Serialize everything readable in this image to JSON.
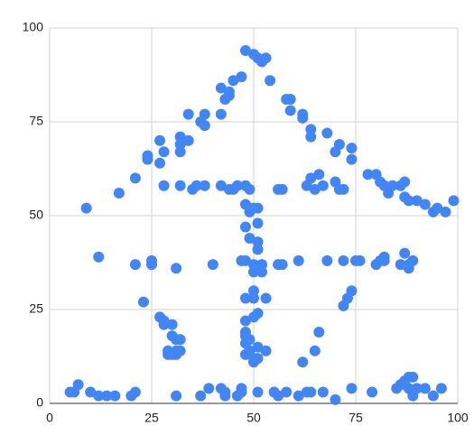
{
  "chart_data": {
    "type": "scatter",
    "color": "#4285f4",
    "xlim": [
      0,
      100
    ],
    "ylim": [
      0,
      100
    ],
    "xticks": [
      0,
      25,
      50,
      75,
      100
    ],
    "yticks": [
      0,
      25,
      50,
      75,
      100
    ],
    "grid": true,
    "x": [
      9,
      17,
      21,
      24,
      24,
      27,
      27,
      28,
      32,
      32,
      32,
      34,
      34,
      37,
      38,
      38,
      42,
      42,
      43,
      44,
      44,
      45,
      47,
      48,
      50,
      51,
      52,
      53,
      54,
      58,
      59,
      59,
      62,
      62,
      64,
      64,
      68,
      70,
      71,
      74,
      74,
      66,
      64,
      65,
      67,
      70,
      71,
      72,
      28,
      32,
      35,
      36,
      38,
      42,
      44,
      45,
      46,
      48,
      49,
      56,
      57,
      63,
      78,
      80,
      81,
      82,
      83,
      84,
      86,
      87,
      87,
      88,
      90,
      92,
      94,
      95,
      97,
      99,
      48,
      49,
      50,
      51,
      48,
      51,
      49,
      51,
      51,
      47,
      48,
      50,
      51,
      50,
      52,
      52,
      48,
      50,
      50,
      53,
      48,
      50,
      51,
      48,
      48,
      49,
      48,
      49,
      51,
      53,
      48,
      50,
      51,
      50,
      12,
      21,
      25,
      25,
      31,
      40,
      56,
      57,
      61,
      68,
      72,
      75,
      76,
      80,
      81,
      82,
      82,
      86,
      87,
      88,
      89,
      88,
      23,
      27,
      28,
      28,
      30,
      30,
      31,
      32,
      29,
      29,
      30,
      31,
      31,
      32,
      74,
      73,
      72,
      66,
      62,
      65,
      5,
      6,
      7,
      10,
      12,
      14,
      16,
      20,
      21,
      31,
      37,
      39,
      42,
      43,
      43,
      46,
      47,
      47,
      51,
      55,
      56,
      58,
      61,
      63,
      64,
      67,
      70,
      74,
      79,
      85,
      86,
      87,
      88,
      89,
      88,
      89,
      90,
      92,
      94,
      96
    ],
    "values": [
      52,
      56,
      60,
      65,
      66,
      64,
      70,
      67,
      67,
      69,
      71,
      70,
      77,
      75,
      74,
      77,
      84,
      77,
      81,
      82,
      83,
      86,
      87,
      94,
      93,
      92,
      91,
      92,
      86,
      81,
      81,
      78,
      77,
      76,
      73,
      71,
      72,
      67,
      69,
      68,
      65,
      61,
      60,
      57,
      58,
      59,
      57,
      57,
      58,
      58,
      57,
      58,
      58,
      58,
      57,
      57,
      58,
      58,
      57,
      57,
      57,
      58,
      61,
      61,
      59,
      58,
      56,
      58,
      58,
      59,
      55,
      54,
      54,
      53,
      51,
      52,
      51,
      54,
      53,
      51,
      52,
      52,
      47,
      48,
      44,
      43,
      41,
      38,
      38,
      37,
      36,
      35,
      35,
      37,
      28,
      30,
      28,
      28,
      22,
      23,
      24,
      19,
      18,
      17,
      16,
      14,
      15,
      14,
      13,
      12,
      12,
      11,
      39,
      37,
      37,
      38,
      36,
      37,
      37,
      37,
      38,
      38,
      38,
      38,
      38,
      37,
      38,
      39,
      38,
      37,
      40,
      37,
      38,
      36,
      27,
      23,
      22,
      21,
      21,
      18,
      17,
      17,
      14,
      13,
      13,
      14,
      13,
      14,
      30,
      28,
      26,
      19,
      11,
      14,
      3,
      3,
      5,
      3,
      2,
      2,
      2,
      2,
      3,
      2,
      2,
      4,
      4,
      3,
      2,
      2,
      3,
      4,
      3,
      3,
      2,
      3,
      2,
      3,
      3,
      3,
      1,
      4,
      3,
      4,
      5,
      6,
      7,
      7,
      4,
      2,
      4,
      4,
      2,
      4
    ]
  }
}
